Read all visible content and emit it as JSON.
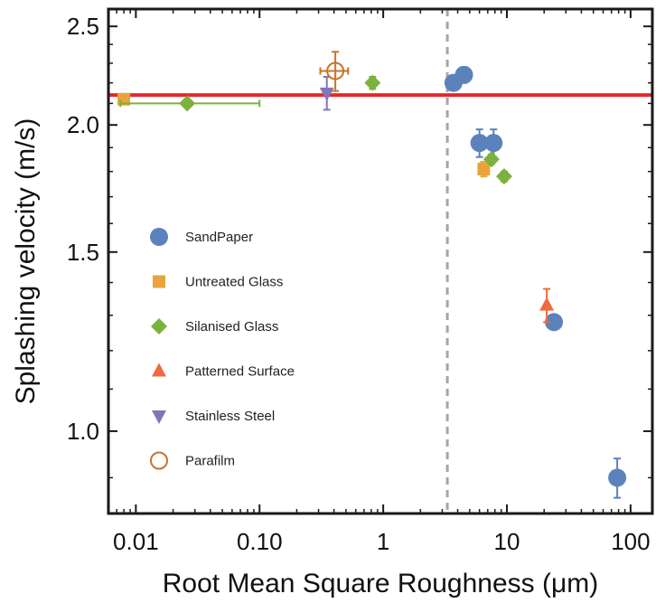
{
  "chart_data": {
    "type": "scatter",
    "title": "",
    "xlabel": "Root Mean Square Roughness (μm)",
    "ylabel": "Splashing velocity (m/s)",
    "xscale": "log",
    "yscale": "log",
    "xlim": [
      0.006,
      150
    ],
    "ylim": [
      0.83,
      2.6
    ],
    "xticks": [
      {
        "value": 0.01,
        "label": "0.01"
      },
      {
        "value": 0.1,
        "label": "0.10"
      },
      {
        "value": 1,
        "label": "1"
      },
      {
        "value": 10,
        "label": "10"
      },
      {
        "value": 100,
        "label": "100"
      }
    ],
    "yticks": [
      {
        "value": 1.0,
        "label": "1.0"
      },
      {
        "value": 1.5,
        "label": "1.5"
      },
      {
        "value": 2.0,
        "label": "2.0"
      },
      {
        "value": 2.5,
        "label": "2.5"
      }
    ],
    "grid": false,
    "legend_position": "left",
    "reference_lines": [
      {
        "orientation": "horizontal",
        "value": 2.14,
        "color": "#e8262b",
        "style": "solid"
      },
      {
        "orientation": "vertical",
        "value": 3.3,
        "color": "#a6a6a6",
        "style": "dashed"
      }
    ],
    "series": [
      {
        "name": "SandPaper",
        "marker": "circle",
        "color": "#5b82bd",
        "points": [
          {
            "x": 3.7,
            "y": 2.2,
            "yerr": 0.02
          },
          {
            "x": 4.5,
            "y": 2.24,
            "yerr": 0.04
          },
          {
            "x": 6.0,
            "y": 1.92,
            "yerr": 0.06
          },
          {
            "x": 7.8,
            "y": 1.92,
            "yerr": 0.06
          },
          {
            "x": 24,
            "y": 1.28,
            "yerr": 0.02
          },
          {
            "x": 78,
            "y": 0.9,
            "yerr": 0.04
          }
        ]
      },
      {
        "name": "Untreated Glass",
        "marker": "square",
        "color": "#e8a43a",
        "points": [
          {
            "x": 0.008,
            "y": 2.12,
            "yerr": 0.0
          },
          {
            "x": 6.5,
            "y": 1.81,
            "yerr": 0.03
          }
        ]
      },
      {
        "name": "Silanised Glass",
        "marker": "diamond",
        "color": "#7bb23e",
        "points": [
          {
            "x": 0.026,
            "y": 2.1,
            "xerr_low": 0.0075,
            "xerr_high": 0.1
          },
          {
            "x": 0.82,
            "y": 2.2,
            "yerr": 0.03
          },
          {
            "x": 7.5,
            "y": 1.85,
            "yerr": 0.02
          },
          {
            "x": 9.5,
            "y": 1.78,
            "yerr": 0.02
          }
        ]
      },
      {
        "name": "Patterned Surface",
        "marker": "triangle-up",
        "color": "#ef6a3c",
        "points": [
          {
            "x": 21,
            "y": 1.33,
            "yerr": 0.05
          }
        ]
      },
      {
        "name": "Stainless Steel",
        "marker": "triangle-down",
        "color": "#8077b8",
        "points": [
          {
            "x": 0.35,
            "y": 2.15,
            "yerr": 0.08
          }
        ]
      },
      {
        "name": "Parafilm",
        "marker": "open-circle",
        "color": "#c8732b",
        "points": [
          {
            "x": 0.41,
            "y": 2.26,
            "yerr": 0.1,
            "xerr_low": 0.31,
            "xerr_high": 0.52
          }
        ]
      }
    ]
  }
}
